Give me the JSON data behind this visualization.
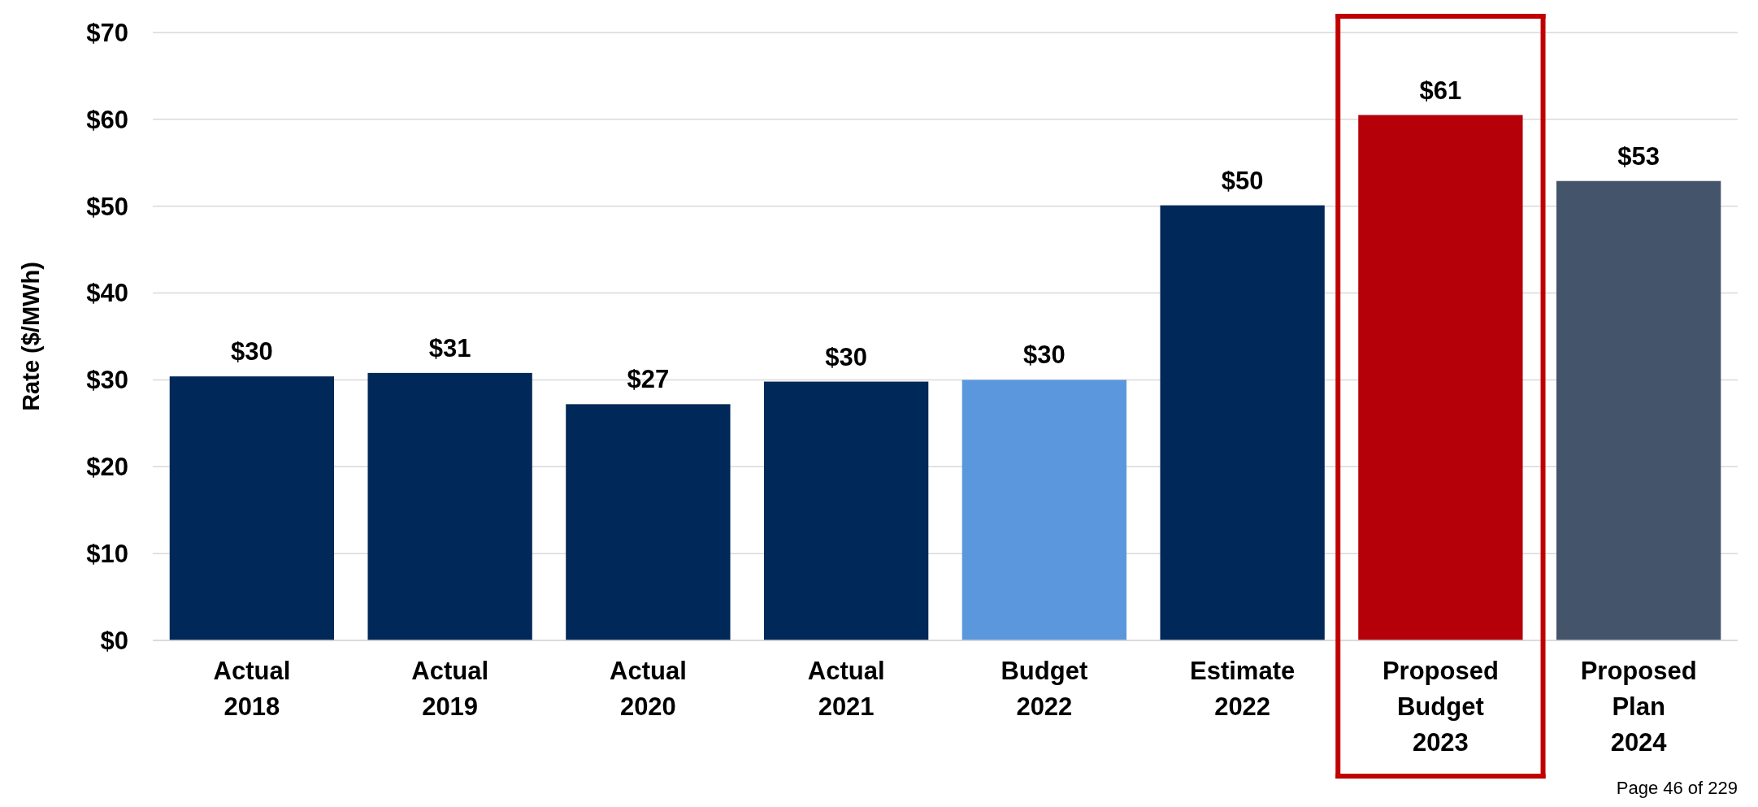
{
  "chart_data": {
    "type": "bar",
    "ylabel": "Rate ($/MWh)",
    "categories": [
      "Actual 2018",
      "Actual 2019",
      "Actual 2020",
      "Actual 2021",
      "Budget 2022",
      "Estimate 2022",
      "Proposed Budget 2023",
      "Proposed Plan 2024"
    ],
    "values": [
      30.4,
      30.8,
      27.2,
      29.8,
      30,
      50.1,
      60.5,
      52.9
    ],
    "colors": [
      "#002858",
      "#002858",
      "#002858",
      "#002858",
      "#5b97dc",
      "#002858",
      "#b5000a",
      "#44546a"
    ],
    "value_labels": [
      "$30",
      "$31",
      "$27",
      "$30",
      "$30",
      "$50",
      "$61",
      "$53"
    ],
    "ylim": [
      0,
      70
    ],
    "yticks": [
      {
        "value": 0,
        "label": "$0"
      },
      {
        "value": 10,
        "label": "$10"
      },
      {
        "value": 20,
        "label": "$20"
      },
      {
        "value": 30,
        "label": "$30"
      },
      {
        "value": 40,
        "label": "$40"
      },
      {
        "value": 50,
        "label": "$50"
      },
      {
        "value": 60,
        "label": "$60"
      },
      {
        "value": 70,
        "label": "$70"
      }
    ],
    "grid": "y",
    "annotations": [
      "Page 46 of 229"
    ]
  }
}
